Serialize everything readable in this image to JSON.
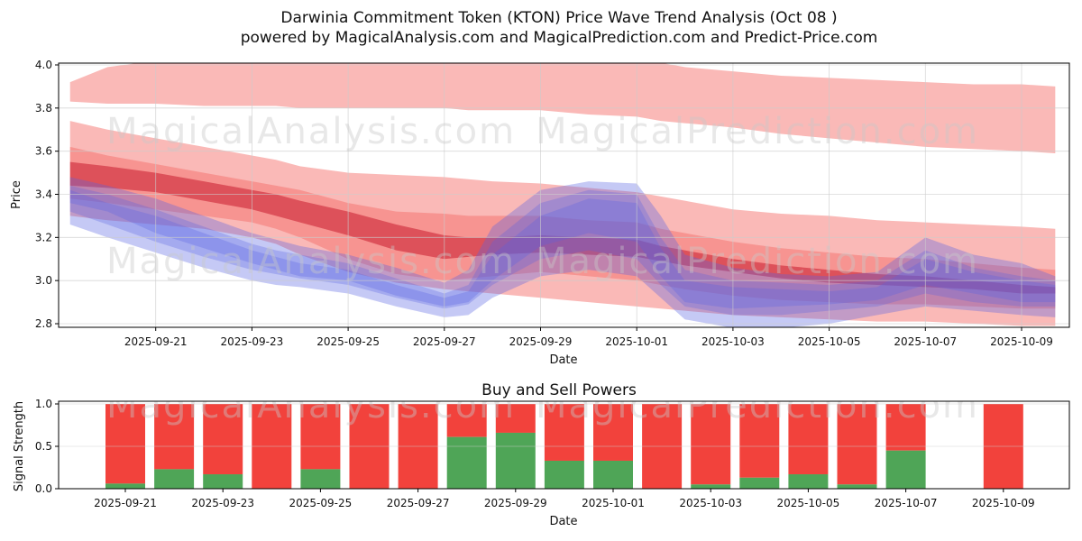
{
  "figure": {
    "title_line1": "Darwinia Commitment Token (KTON) Price Wave Trend Analysis (Oct 08 )",
    "title_line2": "powered by MagicalAnalysis.com and MagicalPrediction.com and Predict-Price.com",
    "watermark_left": "MagicalAnalysis.com",
    "watermark_right": "MagicalPrediction.com"
  },
  "chart_data": [
    {
      "type": "area",
      "name": "price-wave-trend",
      "xlabel": "Date",
      "ylabel": "Price",
      "ylim": [
        2.78,
        4.01
      ],
      "xlim_days": [
        0,
        21
      ],
      "grid": true,
      "yticks": [
        4.0,
        3.8,
        3.6,
        3.4,
        3.2,
        3.0,
        2.8
      ],
      "xticks": [
        {
          "day": 2,
          "label": "2025-09-21"
        },
        {
          "day": 4,
          "label": "2025-09-23"
        },
        {
          "day": 6,
          "label": "2025-09-25"
        },
        {
          "day": 8,
          "label": "2025-09-27"
        },
        {
          "day": 10,
          "label": "2025-09-29"
        },
        {
          "day": 12,
          "label": "2025-10-01"
        },
        {
          "day": 14,
          "label": "2025-10-03"
        },
        {
          "day": 16,
          "label": "2025-10-05"
        },
        {
          "day": 18,
          "label": "2025-10-07"
        },
        {
          "day": 20,
          "label": "2025-10-09"
        }
      ],
      "x_days": [
        0.22,
        1,
        2,
        3,
        4,
        4.5,
        5,
        6,
        7,
        8,
        8.5,
        9,
        10,
        11,
        12,
        12.5,
        13,
        14,
        15,
        16,
        17,
        18,
        19,
        20,
        20.7
      ],
      "bands": [
        {
          "name": "upper-resistance-band",
          "color": "rgba(242,80,75,0.40)",
          "upper": [
            3.92,
            3.99,
            4.02,
            4.04,
            4.05,
            4.05,
            4.06,
            4.06,
            4.06,
            4.06,
            4.06,
            4.05,
            4.05,
            4.03,
            4.02,
            4.01,
            3.99,
            3.97,
            3.95,
            3.94,
            3.93,
            3.92,
            3.91,
            3.91,
            3.9
          ],
          "lower": [
            3.83,
            3.82,
            3.82,
            3.81,
            3.81,
            3.81,
            3.8,
            3.8,
            3.8,
            3.8,
            3.79,
            3.79,
            3.79,
            3.77,
            3.76,
            3.74,
            3.73,
            3.71,
            3.68,
            3.66,
            3.64,
            3.62,
            3.61,
            3.6,
            3.59
          ]
        },
        {
          "name": "outer-red-band",
          "color": "rgba(242,80,75,0.40)",
          "upper": [
            3.74,
            3.7,
            3.66,
            3.62,
            3.58,
            3.56,
            3.53,
            3.5,
            3.49,
            3.48,
            3.47,
            3.46,
            3.45,
            3.43,
            3.41,
            3.39,
            3.37,
            3.33,
            3.31,
            3.3,
            3.28,
            3.27,
            3.26,
            3.25,
            3.24
          ],
          "lower": [
            3.3,
            3.28,
            3.26,
            3.24,
            3.2,
            3.17,
            3.12,
            3.04,
            2.99,
            2.96,
            2.95,
            2.94,
            2.92,
            2.9,
            2.88,
            2.87,
            2.86,
            2.84,
            2.83,
            2.82,
            2.81,
            2.81,
            2.8,
            2.79,
            2.79
          ]
        },
        {
          "name": "mid-red-band",
          "color": "rgba(242,80,75,0.35)",
          "upper": [
            3.62,
            3.58,
            3.54,
            3.5,
            3.46,
            3.44,
            3.42,
            3.36,
            3.32,
            3.31,
            3.3,
            3.3,
            3.3,
            3.28,
            3.27,
            3.24,
            3.22,
            3.18,
            3.15,
            3.13,
            3.11,
            3.1,
            3.08,
            3.06,
            3.05
          ],
          "lower": [
            3.38,
            3.36,
            3.33,
            3.3,
            3.27,
            3.24,
            3.2,
            3.1,
            3.03,
            3.0,
            3.01,
            3.02,
            3.04,
            3.02,
            3.0,
            2.98,
            2.96,
            2.93,
            2.91,
            2.9,
            2.89,
            2.89,
            2.88,
            2.87,
            2.87
          ]
        },
        {
          "name": "core-red-trend-band",
          "color": "rgba(200,25,45,0.55)",
          "upper": [
            3.55,
            3.53,
            3.5,
            3.46,
            3.42,
            3.4,
            3.37,
            3.32,
            3.26,
            3.21,
            3.2,
            3.2,
            3.21,
            3.2,
            3.19,
            3.16,
            3.14,
            3.1,
            3.07,
            3.05,
            3.03,
            3.02,
            3.0,
            2.98,
            2.97
          ],
          "lower": [
            3.44,
            3.43,
            3.41,
            3.37,
            3.33,
            3.3,
            3.27,
            3.21,
            3.14,
            3.1,
            3.11,
            3.12,
            3.13,
            3.12,
            3.11,
            3.09,
            3.07,
            3.04,
            3.01,
            2.99,
            2.98,
            2.97,
            2.96,
            2.94,
            2.94
          ]
        },
        {
          "name": "outer-blue-band",
          "color": "rgba(90,100,225,0.35)",
          "upper": [
            3.48,
            3.44,
            3.38,
            3.3,
            3.22,
            3.19,
            3.16,
            3.12,
            3.06,
            2.99,
            3.05,
            3.25,
            3.42,
            3.46,
            3.45,
            3.3,
            3.12,
            3.06,
            3.03,
            3.02,
            3.04,
            3.2,
            3.12,
            3.08,
            3.02
          ],
          "lower": [
            3.26,
            3.2,
            3.13,
            3.06,
            3.0,
            2.98,
            2.97,
            2.94,
            2.88,
            2.83,
            2.84,
            2.92,
            3.02,
            3.05,
            3.02,
            2.92,
            2.82,
            2.78,
            2.78,
            2.8,
            2.84,
            2.88,
            2.86,
            2.84,
            2.83
          ]
        },
        {
          "name": "mid-blue-band",
          "color": "rgba(90,100,225,0.30)",
          "upper": [
            3.44,
            3.4,
            3.33,
            3.25,
            3.17,
            3.14,
            3.12,
            3.08,
            3.01,
            2.94,
            2.98,
            3.18,
            3.36,
            3.42,
            3.4,
            3.2,
            3.05,
            3.0,
            2.99,
            2.98,
            3.0,
            3.14,
            3.06,
            3.02,
            3.0
          ],
          "lower": [
            3.32,
            3.26,
            3.18,
            3.11,
            3.05,
            3.03,
            3.01,
            2.98,
            2.92,
            2.87,
            2.89,
            2.98,
            3.1,
            3.14,
            3.1,
            2.98,
            2.88,
            2.84,
            2.84,
            2.86,
            2.88,
            2.94,
            2.9,
            2.88,
            2.88
          ]
        },
        {
          "name": "core-blue-band",
          "color": "rgba(90,100,225,0.30)",
          "upper": [
            3.42,
            3.36,
            3.3,
            3.22,
            3.14,
            3.11,
            3.08,
            3.05,
            2.98,
            2.92,
            2.95,
            3.12,
            3.3,
            3.38,
            3.36,
            3.15,
            3.0,
            2.97,
            2.96,
            2.95,
            2.97,
            3.1,
            3.04,
            3.0,
            2.98
          ],
          "lower": [
            3.36,
            3.32,
            3.22,
            3.15,
            3.08,
            3.05,
            3.02,
            3.0,
            2.93,
            2.88,
            2.9,
            3.0,
            3.16,
            3.22,
            3.18,
            3.02,
            2.9,
            2.87,
            2.88,
            2.89,
            2.91,
            2.98,
            2.94,
            2.9,
            2.9
          ]
        }
      ]
    },
    {
      "type": "bar",
      "name": "buy-sell-powers",
      "title": "Buy and Sell Powers",
      "xlabel": "Date",
      "ylabel": "Signal Strength",
      "ylim": [
        0.0,
        1.0
      ],
      "grid": true,
      "yticks": [
        1.0,
        0.5,
        0.0
      ],
      "categories": [
        "2025-09-21",
        "2025-09-22",
        "2025-09-23",
        "2025-09-24",
        "2025-09-25",
        "2025-09-26",
        "2025-09-27",
        "2025-09-28",
        "2025-09-29",
        "2025-09-30",
        "2025-10-01",
        "2025-10-02",
        "2025-10-03",
        "2025-10-04",
        "2025-10-05",
        "2025-10-06",
        "2025-10-07",
        "2025-10-08",
        "2025-10-09"
      ],
      "xtick_every": 2,
      "series": [
        {
          "name": "buy-power",
          "color": "#4fa557",
          "values": [
            0.06,
            0.23,
            0.17,
            0.0,
            0.23,
            0.0,
            0.0,
            0.61,
            0.66,
            0.33,
            0.33,
            0.0,
            0.05,
            0.13,
            0.17,
            0.05,
            0.45,
            null,
            0.0
          ]
        },
        {
          "name": "sell-power",
          "color": "#f2423c",
          "values": [
            0.94,
            0.77,
            0.83,
            1.0,
            0.77,
            1.0,
            1.0,
            0.39,
            0.34,
            0.67,
            0.67,
            1.0,
            0.95,
            0.87,
            0.83,
            0.95,
            0.55,
            null,
            1.0
          ]
        }
      ]
    }
  ]
}
